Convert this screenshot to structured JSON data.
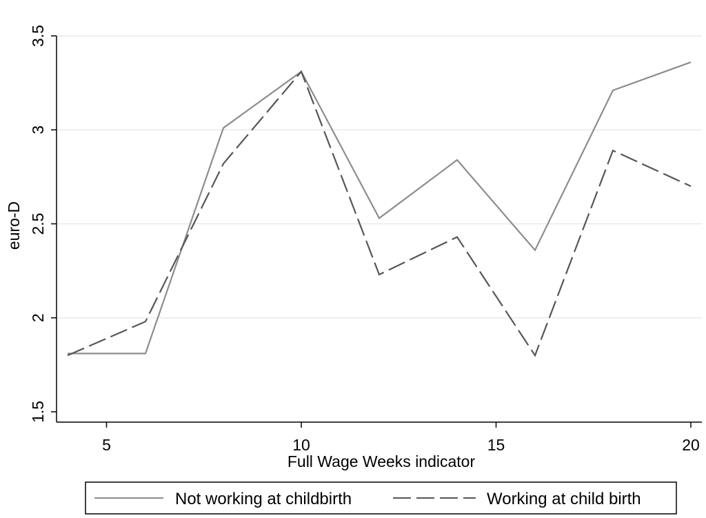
{
  "chart_data": {
    "type": "line",
    "title": "",
    "xlabel": "Full Wage Weeks indicator",
    "ylabel": "euro-D",
    "x": [
      4,
      6,
      8,
      10,
      12,
      14,
      16,
      18,
      20
    ],
    "xlim": [
      4,
      20
    ],
    "ylim": [
      1.5,
      3.5
    ],
    "xticks": [
      5,
      10,
      15,
      20
    ],
    "yticks": [
      1.5,
      2,
      2.5,
      3,
      3.5
    ],
    "xtick_labels": [
      "5",
      "10",
      "15",
      "20"
    ],
    "ytick_labels": [
      "1.5",
      "2",
      "2.5",
      "3",
      "3.5"
    ],
    "grid": true,
    "legend_position": "bottom",
    "series": [
      {
        "name": "Not working at childbirth",
        "style": "solid",
        "color": "#8c8c8c",
        "values": [
          1.81,
          1.81,
          3.01,
          3.31,
          2.53,
          2.84,
          2.36,
          3.21,
          3.36
        ]
      },
      {
        "name": "Working at child birth",
        "style": "dashed",
        "color": "#555555",
        "values": [
          1.8,
          1.98,
          2.82,
          3.31,
          2.23,
          2.43,
          1.8,
          2.89,
          2.7
        ]
      }
    ]
  }
}
